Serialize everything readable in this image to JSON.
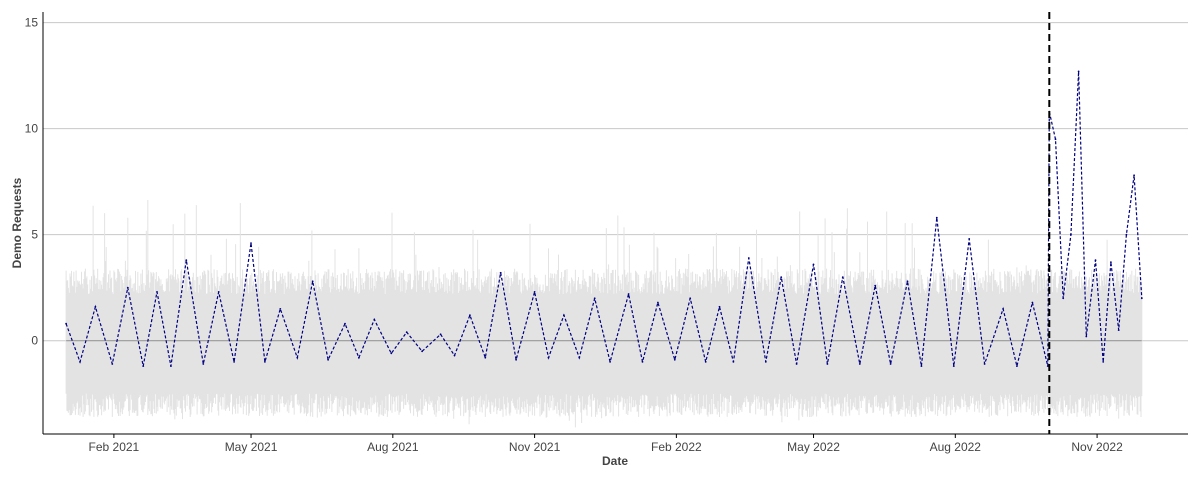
{
  "chart_data": {
    "type": "line",
    "title": "",
    "xlabel": "Date",
    "ylabel": "Demo Requests",
    "x_range": [
      "2020-12-17",
      "2022-12-30"
    ],
    "ylim": [
      -4.4,
      15.5
    ],
    "y_ticks": [
      0,
      5,
      10,
      15
    ],
    "x_ticks": [
      "Feb 2021",
      "May 2021",
      "Aug 2021",
      "Nov 2021",
      "Feb 2022",
      "May 2022",
      "Aug 2022",
      "Nov 2022"
    ],
    "x_tick_dates": [
      "2021-02-01",
      "2021-05-01",
      "2021-08-01",
      "2021-11-01",
      "2022-02-01",
      "2022-05-01",
      "2022-08-01",
      "2022-11-01"
    ],
    "grid": "horizontal",
    "legend": "none",
    "colors": {
      "series": "#000080",
      "band": "#e3e3e3",
      "baseline": "#999999",
      "marker_line": "#000000",
      "grid": "#c8c8c8",
      "axis": "#000000"
    },
    "vertical_marker": {
      "date": "2022-10-01",
      "style": "dashed"
    },
    "baseline_value": 0,
    "band": {
      "lower_typical": -2.5,
      "upper_typical": 2.2
    },
    "series": [
      {
        "style": "dashed",
        "date_range": [
          "2021-01-01",
          "2022-11-30"
        ],
        "points": [
          [
            "2021-01-01",
            0.8
          ],
          [
            "2021-01-10",
            -1.0
          ],
          [
            "2021-01-20",
            1.6
          ],
          [
            "2021-01-31",
            -1.1
          ],
          [
            "2021-02-10",
            2.5
          ],
          [
            "2021-02-20",
            -1.2
          ],
          [
            "2021-03-01",
            2.3
          ],
          [
            "2021-03-10",
            -1.2
          ],
          [
            "2021-03-20",
            3.8
          ],
          [
            "2021-03-31",
            -1.1
          ],
          [
            "2021-04-10",
            2.3
          ],
          [
            "2021-04-20",
            -1.0
          ],
          [
            "2021-05-01",
            4.6
          ],
          [
            "2021-05-10",
            -1.0
          ],
          [
            "2021-05-20",
            1.5
          ],
          [
            "2021-05-31",
            -0.8
          ],
          [
            "2021-06-10",
            2.8
          ],
          [
            "2021-06-20",
            -0.9
          ],
          [
            "2021-07-01",
            0.8
          ],
          [
            "2021-07-10",
            -0.8
          ],
          [
            "2021-07-20",
            1.0
          ],
          [
            "2021-07-31",
            -0.6
          ],
          [
            "2021-08-10",
            0.4
          ],
          [
            "2021-08-20",
            -0.5
          ],
          [
            "2021-09-01",
            0.3
          ],
          [
            "2021-09-10",
            -0.7
          ],
          [
            "2021-09-20",
            1.2
          ],
          [
            "2021-09-30",
            -0.8
          ],
          [
            "2021-10-10",
            3.2
          ],
          [
            "2021-10-20",
            -0.9
          ],
          [
            "2021-11-01",
            2.3
          ],
          [
            "2021-11-10",
            -0.8
          ],
          [
            "2021-11-20",
            1.2
          ],
          [
            "2021-11-30",
            -0.8
          ],
          [
            "2021-12-10",
            2.0
          ],
          [
            "2021-12-20",
            -1.0
          ],
          [
            "2022-01-01",
            2.2
          ],
          [
            "2022-01-10",
            -1.0
          ],
          [
            "2022-01-20",
            1.8
          ],
          [
            "2022-01-31",
            -0.9
          ],
          [
            "2022-02-10",
            2.0
          ],
          [
            "2022-02-20",
            -1.0
          ],
          [
            "2022-03-01",
            1.6
          ],
          [
            "2022-03-10",
            -1.0
          ],
          [
            "2022-03-20",
            3.9
          ],
          [
            "2022-03-31",
            -1.0
          ],
          [
            "2022-04-10",
            3.0
          ],
          [
            "2022-04-20",
            -1.1
          ],
          [
            "2022-05-01",
            3.6
          ],
          [
            "2022-05-10",
            -1.1
          ],
          [
            "2022-05-20",
            3.0
          ],
          [
            "2022-05-31",
            -1.1
          ],
          [
            "2022-06-10",
            2.6
          ],
          [
            "2022-06-20",
            -1.1
          ],
          [
            "2022-07-01",
            2.8
          ],
          [
            "2022-07-10",
            -1.2
          ],
          [
            "2022-07-20",
            5.8
          ],
          [
            "2022-07-31",
            -1.2
          ],
          [
            "2022-08-10",
            4.8
          ],
          [
            "2022-08-20",
            -1.1
          ],
          [
            "2022-09-01",
            1.5
          ],
          [
            "2022-09-10",
            -1.2
          ],
          [
            "2022-09-20",
            1.8
          ],
          [
            "2022-09-30",
            -1.2
          ],
          [
            "2022-10-01",
            10.8
          ],
          [
            "2022-10-05",
            9.5
          ],
          [
            "2022-10-10",
            2.0
          ],
          [
            "2022-10-15",
            5.0
          ],
          [
            "2022-10-20",
            12.7
          ],
          [
            "2022-10-25",
            0.2
          ],
          [
            "2022-10-31",
            3.8
          ],
          [
            "2022-11-05",
            -1.0
          ],
          [
            "2022-11-10",
            3.7
          ],
          [
            "2022-11-15",
            0.5
          ],
          [
            "2022-11-20",
            5.0
          ],
          [
            "2022-11-25",
            7.8
          ],
          [
            "2022-11-30",
            2.0
          ]
        ]
      }
    ]
  }
}
